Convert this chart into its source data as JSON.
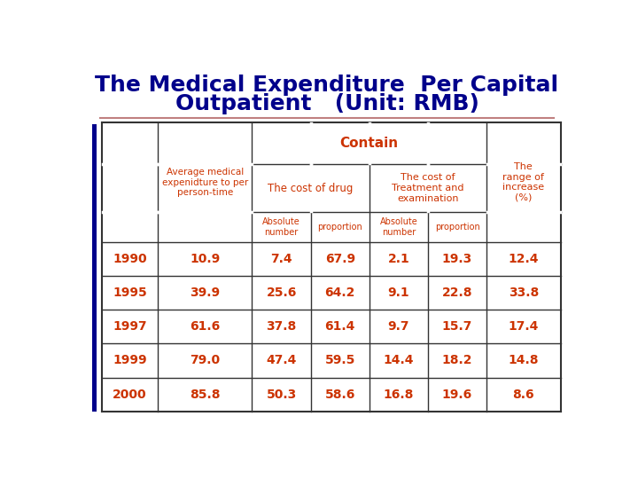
{
  "title_line1": "The Medical Expenditure  Per Capital",
  "title_line2": "Outpatient   (Unit: RMB)",
  "title_color": "#00008B",
  "title_fontsize": 18,
  "separator_line_color": "#c08080",
  "left_bar_color": "#00008B",
  "table_border_color": "#333333",
  "header_text_color": "#cc3300",
  "data_text_color": "#cc3300",
  "background_color": "#ffffff",
  "years": [
    "1990",
    "1995",
    "1997",
    "1999",
    "2000"
  ],
  "data": [
    [
      "10.9",
      "7.4",
      "67.9",
      "2.1",
      "19.3",
      "12.4"
    ],
    [
      "39.9",
      "25.6",
      "64.2",
      "9.1",
      "22.8",
      "33.8"
    ],
    [
      "61.6",
      "37.8",
      "61.4",
      "9.7",
      "15.7",
      "17.4"
    ],
    [
      "79.0",
      "47.4",
      "59.5",
      "14.4",
      "18.2",
      "14.8"
    ],
    [
      "85.8",
      "50.3",
      "58.6",
      "16.8",
      "19.6",
      "8.6"
    ]
  ],
  "figsize": [
    7.2,
    5.4
  ],
  "dpi": 100
}
